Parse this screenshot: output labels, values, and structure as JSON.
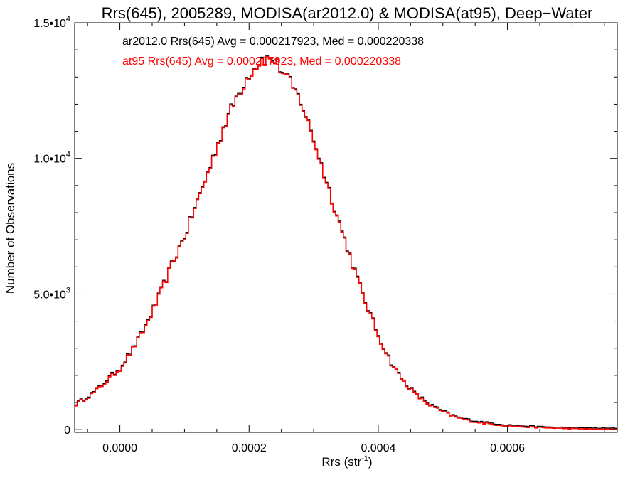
{
  "chart_data": {
    "type": "histogram",
    "title": "Rrs(645), 2005289, MODISA(ar2012.0) & MODISA(at95), Deep−Water",
    "xlabel": "Rrs (str",
    "xlabel_sup": "-1",
    "xlabel_close": ")",
    "ylabel": "Number of Observations",
    "xlim": [
      -7e-05,
      0.00077
    ],
    "ylim": [
      -100,
      15000
    ],
    "x_ticks": [
      0.0,
      0.0002,
      0.0004,
      0.0006
    ],
    "x_tick_labels": [
      "0.0000",
      "0.0002",
      "0.0004",
      "0.0006"
    ],
    "y_ticks": [
      0,
      5000,
      10000,
      15000
    ],
    "y_tick_labels": [
      {
        "base": "0",
        "exp": ""
      },
      {
        "base": "5.0•10",
        "exp": "3"
      },
      {
        "base": "1.0•10",
        "exp": "4"
      },
      {
        "base": "1.5•10",
        "exp": "4"
      }
    ],
    "annotations": [
      {
        "text": "ar2012.0 Rrs(645) Avg = 0.000217923, Med = 0.000220338",
        "color": "#000000"
      },
      {
        "text": "at95 Rrs(645) Avg = 0.000217923, Med = 0.000220338",
        "color": "#ff0000"
      }
    ],
    "series": [
      {
        "name": "ar2012.0",
        "color": "#000000"
      },
      {
        "name": "at95",
        "color": "#ff0000"
      }
    ],
    "bin_width": 4e-06,
    "bins_start": -7e-05,
    "counts_smooth": [
      [
        -7e-05,
        900
      ],
      [
        -4e-05,
        1350
      ],
      [
        -2e-05,
        1800
      ],
      [
        0.0,
        2250
      ],
      [
        2e-05,
        2950
      ],
      [
        4e-05,
        3800
      ],
      [
        6e-05,
        4850
      ],
      [
        8e-05,
        6050
      ],
      [
        0.0001,
        7100
      ],
      [
        0.00012,
        8400
      ],
      [
        0.00014,
        9700
      ],
      [
        0.00016,
        11100
      ],
      [
        0.00018,
        12200
      ],
      [
        0.0002,
        13100
      ],
      [
        0.00022,
        13650
      ],
      [
        0.00024,
        13600
      ],
      [
        0.00026,
        12900
      ],
      [
        0.00028,
        12100
      ],
      [
        0.0003,
        10700
      ],
      [
        0.00032,
        9100
      ],
      [
        0.00034,
        7600
      ],
      [
        0.00036,
        6100
      ],
      [
        0.00038,
        4700
      ],
      [
        0.0004,
        3450
      ],
      [
        0.00042,
        2450
      ],
      [
        0.00044,
        1750
      ],
      [
        0.00046,
        1250
      ],
      [
        0.00048,
        900
      ],
      [
        0.0005,
        650
      ],
      [
        0.00052,
        450
      ],
      [
        0.00054,
        330
      ],
      [
        0.00056,
        250
      ],
      [
        0.00058,
        190
      ],
      [
        0.0006,
        140
      ],
      [
        0.00062,
        110
      ],
      [
        0.00064,
        85
      ],
      [
        0.00066,
        65
      ],
      [
        0.00068,
        50
      ],
      [
        0.0007,
        38
      ],
      [
        0.00072,
        28
      ],
      [
        0.00074,
        20
      ],
      [
        0.00077,
        15
      ]
    ]
  }
}
